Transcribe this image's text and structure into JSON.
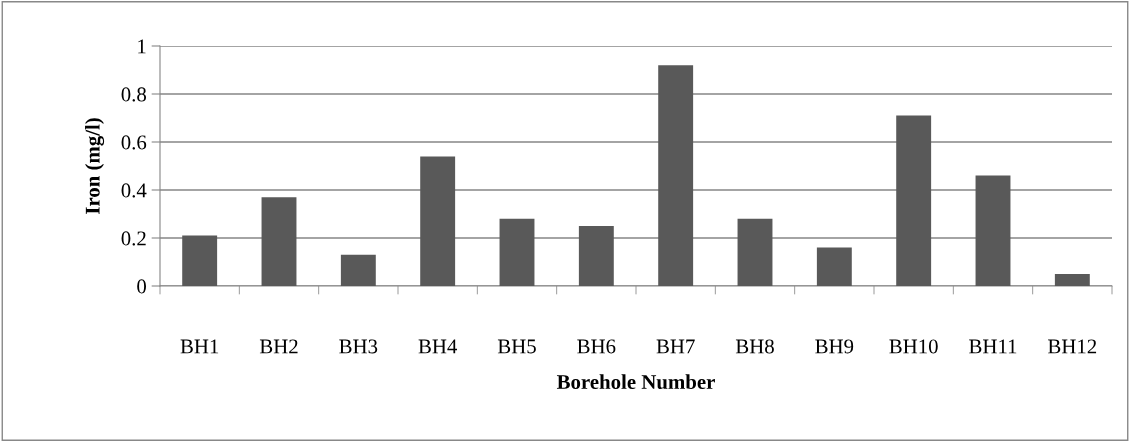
{
  "chart_data": {
    "type": "bar",
    "xlabel": "Borehole Number",
    "ylabel": "Iron (mg/l)",
    "categories": [
      "BH1",
      "BH2",
      "BH3",
      "BH4",
      "BH5",
      "BH6",
      "BH7",
      "BH8",
      "BH9",
      "BH10",
      "BH11",
      "BH12"
    ],
    "values": [
      0.21,
      0.37,
      0.13,
      0.54,
      0.28,
      0.25,
      0.92,
      0.28,
      0.16,
      0.71,
      0.46,
      0.05
    ],
    "color": "#595959",
    "ylim": [
      0,
      1
    ],
    "yticks": [
      0,
      0.2,
      0.4,
      0.6,
      0.8,
      1
    ],
    "grid": "y",
    "legend": false
  }
}
